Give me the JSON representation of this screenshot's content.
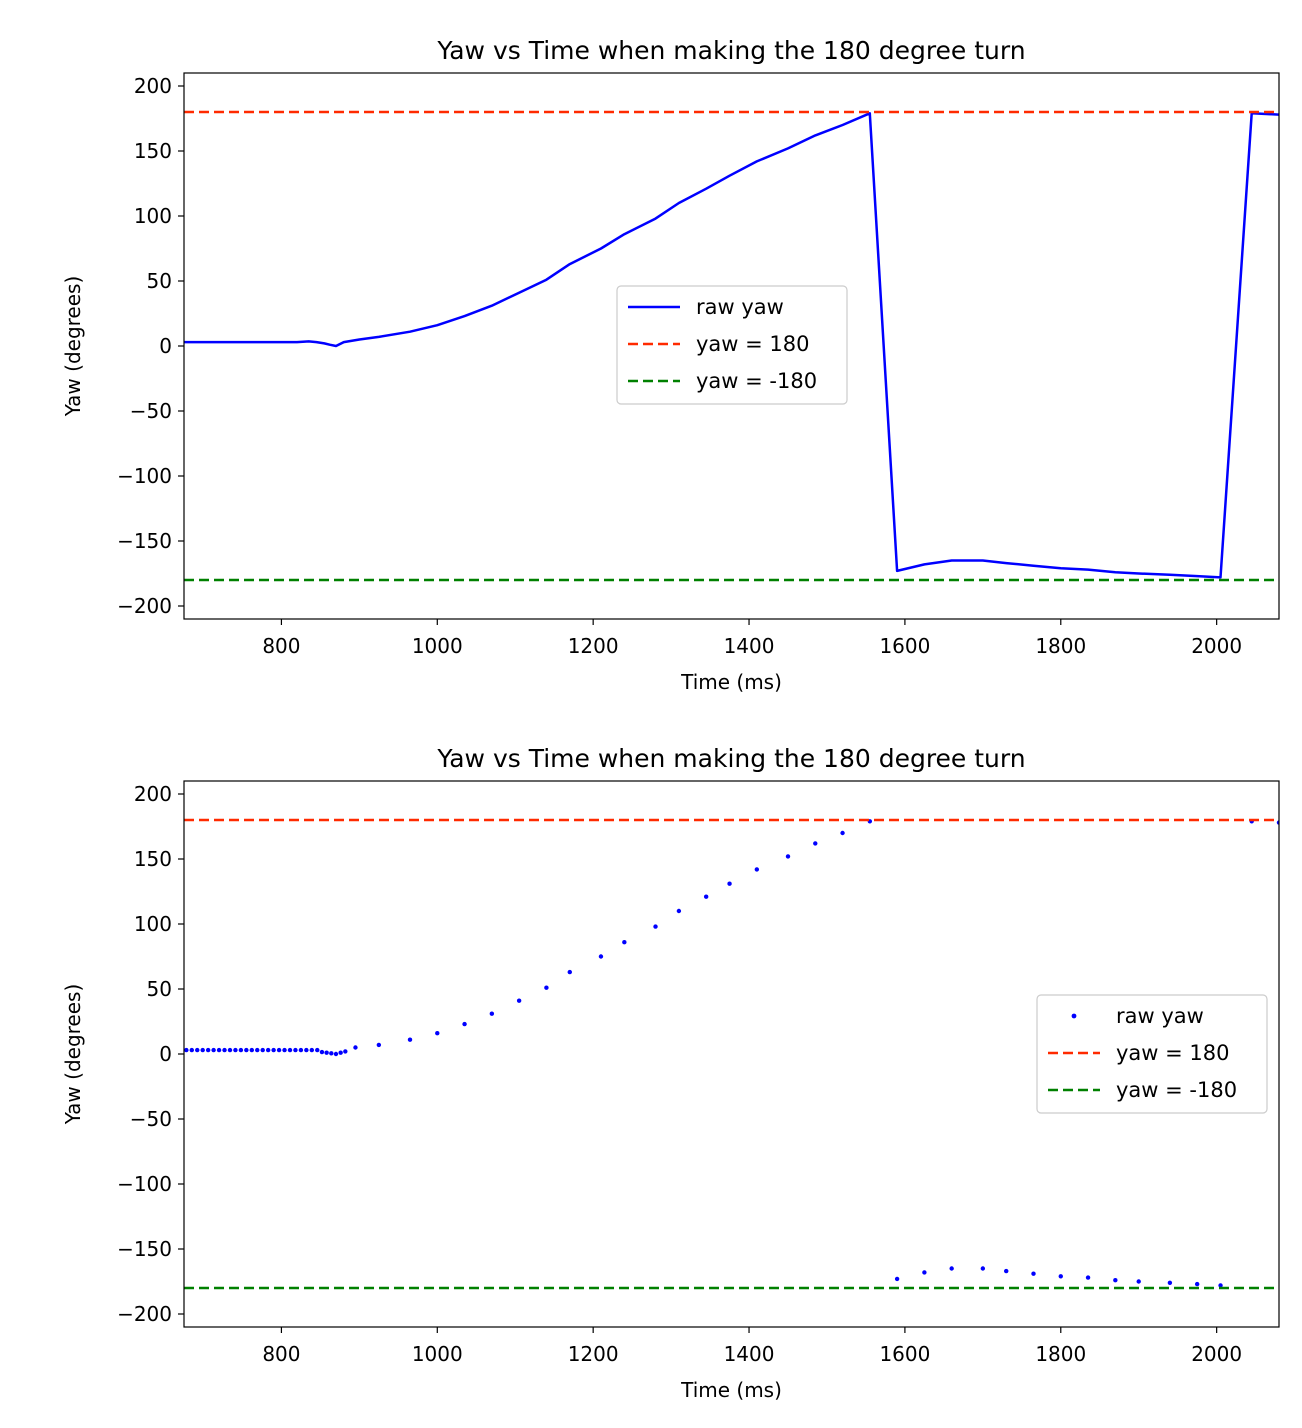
{
  "chart_data": [
    {
      "type": "line",
      "title": "Yaw vs Time when making the 180 degree turn",
      "xlabel": "Time (ms)",
      "ylabel": "Yaw (degrees)",
      "xlim": [
        675,
        2080
      ],
      "ylim": [
        -210,
        210
      ],
      "xticks": [
        800,
        1000,
        1200,
        1400,
        1600,
        1800,
        2000
      ],
      "xtick_labels": [
        "800",
        "1000",
        "1200",
        "1400",
        "1600",
        "1800",
        "2000"
      ],
      "yticks": [
        200,
        150,
        100,
        50,
        0,
        -50,
        -100,
        -150,
        -200
      ],
      "ytick_labels": [
        "200",
        "150",
        "100",
        "50",
        "0",
        "−50",
        "−100",
        "−150",
        "−200"
      ],
      "grid": false,
      "legend_position": "center-right",
      "series": [
        {
          "name": "raw yaw",
          "kind": "line",
          "color": "#0000ff",
          "x": [
            675,
            700,
            730,
            760,
            790,
            820,
            835,
            845,
            855,
            862,
            870,
            880,
            900,
            925,
            965,
            1000,
            1035,
            1070,
            1105,
            1140,
            1170,
            1210,
            1240,
            1280,
            1310,
            1345,
            1375,
            1410,
            1450,
            1485,
            1520,
            1555,
            1590,
            1625,
            1660,
            1700,
            1730,
            1765,
            1800,
            1835,
            1870,
            1900,
            1940,
            1975,
            2005,
            2045,
            2080
          ],
          "y": [
            3,
            3,
            3,
            3,
            3,
            3,
            3.5,
            3,
            2,
            1,
            0,
            3,
            5,
            7,
            11,
            16,
            23,
            31,
            41,
            51,
            63,
            75,
            86,
            98,
            110,
            121,
            131,
            142,
            152,
            162,
            170,
            179,
            -173,
            -168,
            -165,
            -165,
            -167,
            -169,
            -171,
            -172,
            -174,
            -175,
            -176,
            -177,
            -178,
            179,
            178
          ]
        },
        {
          "name": "yaw = 180",
          "kind": "hline",
          "y": 180,
          "color": "#ff2a00",
          "style": "dashed"
        },
        {
          "name": "yaw = -180",
          "kind": "hline",
          "y": -180,
          "color": "#008000",
          "style": "dashed"
        }
      ]
    },
    {
      "type": "scatter",
      "title": "Yaw vs Time when making the 180 degree turn",
      "xlabel": "Time (ms)",
      "ylabel": "Yaw (degrees)",
      "xlim": [
        675,
        2080
      ],
      "ylim": [
        -210,
        210
      ],
      "xticks": [
        800,
        1000,
        1200,
        1400,
        1600,
        1800,
        2000
      ],
      "xtick_labels": [
        "800",
        "1000",
        "1200",
        "1400",
        "1600",
        "1800",
        "2000"
      ],
      "yticks": [
        200,
        150,
        100,
        50,
        0,
        -50,
        -100,
        -150,
        -200
      ],
      "ytick_labels": [
        "200",
        "150",
        "100",
        "50",
        "0",
        "−50",
        "−100",
        "−150",
        "−200"
      ],
      "grid": false,
      "legend_position": "center-right",
      "series": [
        {
          "name": "raw yaw",
          "kind": "scatter",
          "color": "#0000ff",
          "x": [
            678,
            685,
            692,
            699,
            706,
            713,
            720,
            727,
            734,
            741,
            748,
            755,
            762,
            769,
            776,
            783,
            790,
            797,
            804,
            811,
            818,
            825,
            832,
            839,
            846,
            852,
            858,
            864,
            870,
            876,
            882,
            895,
            925,
            965,
            1000,
            1035,
            1070,
            1105,
            1140,
            1170,
            1210,
            1240,
            1280,
            1310,
            1345,
            1375,
            1410,
            1450,
            1485,
            1520,
            1555,
            1590,
            1625,
            1660,
            1700,
            1730,
            1765,
            1800,
            1835,
            1870,
            1900,
            1940,
            1975,
            2005,
            2045,
            2080
          ],
          "y": [
            3,
            3,
            3,
            3,
            3,
            3,
            3,
            3,
            3,
            3,
            3,
            3,
            3,
            3,
            3,
            3,
            3,
            3,
            3,
            3,
            3,
            3,
            3,
            3,
            3,
            1.5,
            1,
            0.5,
            0,
            1,
            2,
            5,
            7,
            11,
            16,
            23,
            31,
            41,
            51,
            63,
            75,
            86,
            98,
            110,
            121,
            131,
            142,
            152,
            162,
            170,
            179,
            -173,
            -168,
            -165,
            -165,
            -167,
            -169,
            -171,
            -172,
            -174,
            -175,
            -176,
            -177,
            -178,
            179,
            178
          ]
        },
        {
          "name": "yaw = 180",
          "kind": "hline",
          "y": 180,
          "color": "#ff2a00",
          "style": "dashed"
        },
        {
          "name": "yaw = -180",
          "kind": "hline",
          "y": -180,
          "color": "#008000",
          "style": "dashed"
        }
      ]
    }
  ]
}
